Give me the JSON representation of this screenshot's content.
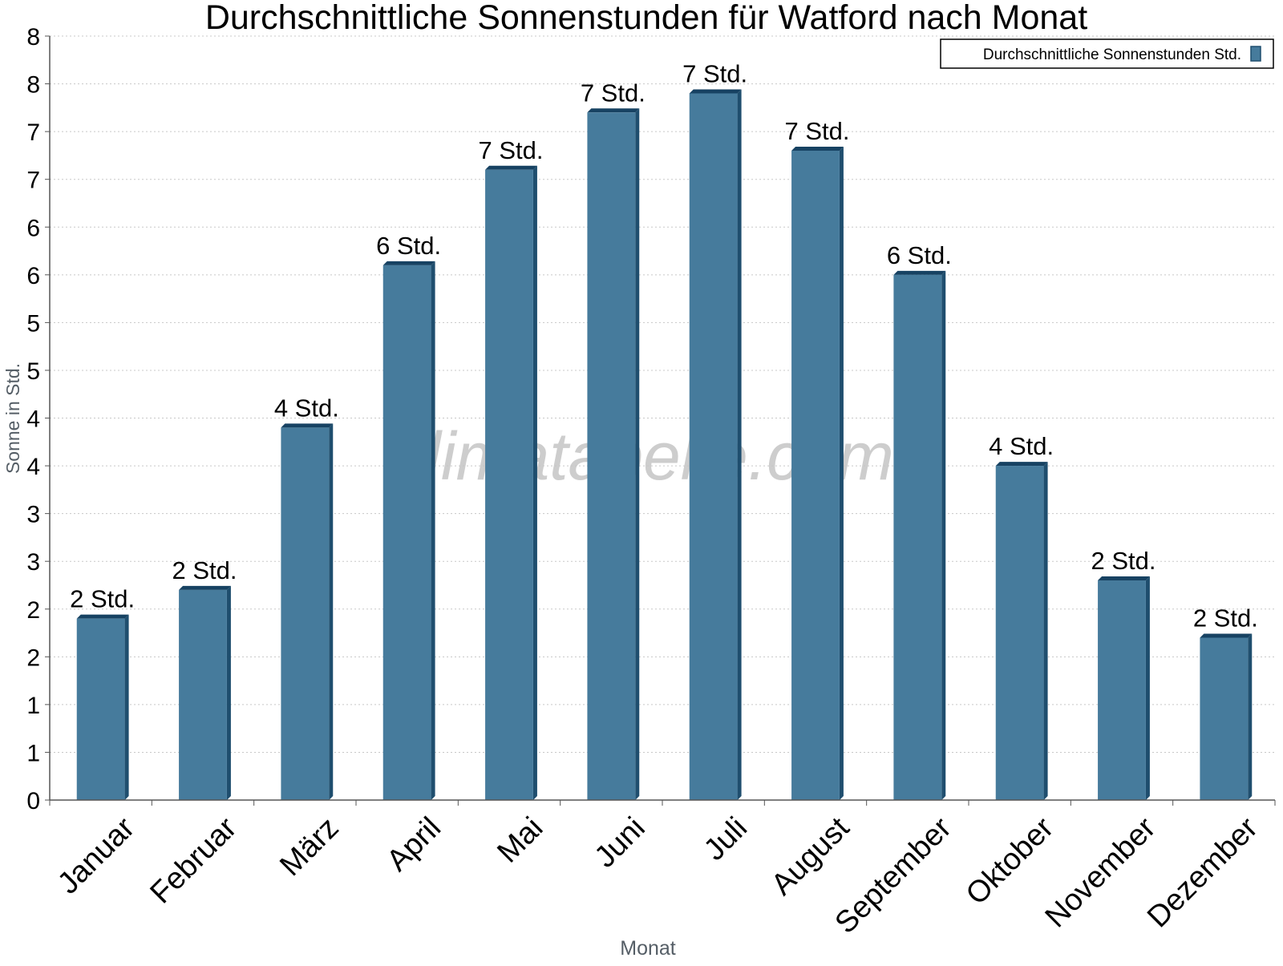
{
  "chart_data": {
    "type": "bar",
    "title": "Durchschnittliche Sonnenstunden für Watford nach Monat",
    "xlabel": "Monat",
    "ylabel": "Sonne in Std.",
    "categories": [
      "Januar",
      "Februar",
      "März",
      "April",
      "Mai",
      "Juni",
      "Juli",
      "August",
      "September",
      "Oktober",
      "November",
      "Dezember"
    ],
    "series": [
      {
        "name": "Durchschnittliche Sonnenstunden Std.",
        "values": [
          1.9,
          2.2,
          3.9,
          5.6,
          6.6,
          7.2,
          7.4,
          6.8,
          5.5,
          3.5,
          2.3,
          1.7
        ],
        "labels": [
          "2 Std.",
          "2 Std.",
          "4 Std.",
          "6 Std.",
          "7 Std.",
          "7 Std.",
          "7 Std.",
          "7 Std.",
          "6 Std.",
          "4 Std.",
          "2 Std.",
          "2 Std."
        ]
      }
    ],
    "yticks": [
      0,
      0.5,
      1,
      1.5,
      2,
      2.5,
      3,
      3.5,
      4,
      4.5,
      5,
      5.5,
      6,
      6.5,
      7,
      7.5,
      8
    ],
    "yticklabels": [
      "0",
      "1",
      "1",
      "2",
      "2",
      "3",
      "3",
      "4",
      "4",
      "5",
      "5",
      "6",
      "6",
      "7",
      "7",
      "8",
      "8"
    ],
    "ylim": [
      0,
      8
    ],
    "grid": true,
    "legend": "top-right",
    "watermark": "klimatabelle.com",
    "colors": {
      "bar": "#467b9c",
      "bar_side": "#1f4e6e",
      "bar_top": "#174262"
    }
  }
}
